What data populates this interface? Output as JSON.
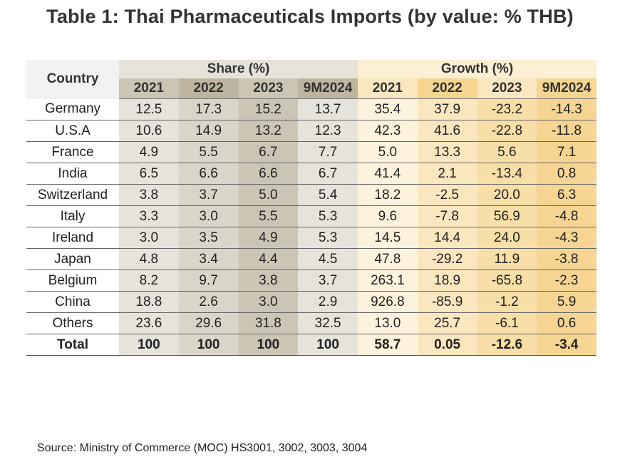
{
  "title": "Table 1: Thai Pharmaceuticals Imports (by value: % THB)",
  "table": {
    "country_header": "Country",
    "share_header": "Share (%)",
    "growth_header": "Growth (%)",
    "years": [
      "2021",
      "2022",
      "2023",
      "9M2024"
    ],
    "rows": [
      {
        "country": "Germany",
        "share": [
          "12.5",
          "17.3",
          "15.2",
          "13.7"
        ],
        "growth": [
          "35.4",
          "37.9",
          "-23.2",
          "-14.3"
        ]
      },
      {
        "country": "U.S.A",
        "share": [
          "10.6",
          "14.9",
          "13.2",
          "12.3"
        ],
        "growth": [
          "42.3",
          "41.6",
          "-22.8",
          "-11.8"
        ]
      },
      {
        "country": "France",
        "share": [
          "4.9",
          "5.5",
          "6.7",
          "7.7"
        ],
        "growth": [
          "5.0",
          "13.3",
          "5.6",
          "7.1"
        ]
      },
      {
        "country": "India",
        "share": [
          "6.5",
          "6.6",
          "6.6",
          "6.7"
        ],
        "growth": [
          "41.4",
          "2.1",
          "-13.4",
          "0.8"
        ]
      },
      {
        "country": "Switzerland",
        "share": [
          "3.8",
          "3.7",
          "5.0",
          "5.4"
        ],
        "growth": [
          "18.2",
          "-2.5",
          "20.0",
          "6.3"
        ]
      },
      {
        "country": "Italy",
        "share": [
          "3.3",
          "3.0",
          "5.5",
          "5.3"
        ],
        "growth": [
          "9.6",
          "-7.8",
          "56.9",
          "-4.8"
        ]
      },
      {
        "country": "Ireland",
        "share": [
          "3.0",
          "3.5",
          "4.9",
          "5.3"
        ],
        "growth": [
          "14.5",
          "14.4",
          "24.0",
          "-4.3"
        ]
      },
      {
        "country": "Japan",
        "share": [
          "4.8",
          "3.4",
          "4.4",
          "4.5"
        ],
        "growth": [
          "47.8",
          "-29.2",
          "11.9",
          "-3.8"
        ]
      },
      {
        "country": "Belgium",
        "share": [
          "8.2",
          "9.7",
          "3.8",
          "3.7"
        ],
        "growth": [
          "263.1",
          "18.9",
          "-65.8",
          "-2.3"
        ]
      },
      {
        "country": "China",
        "share": [
          "18.8",
          "2.6",
          "3.0",
          "2.9"
        ],
        "growth": [
          "926.8",
          "-85.9",
          "-1.2",
          "5.9"
        ]
      },
      {
        "country": "Others",
        "share": [
          "23.6",
          "29.6",
          "31.8",
          "32.5"
        ],
        "growth": [
          "13.0",
          "25.7",
          "-6.1",
          "0.6"
        ]
      }
    ],
    "total": {
      "country": "Total",
      "share": [
        "100",
        "100",
        "100",
        "100"
      ],
      "growth": [
        "58.7",
        "0.05",
        "-12.6",
        "-3.4"
      ]
    }
  },
  "source": "Source: Ministry of Commerce (MOC) HS3001, 3002, 3003, 3004"
}
